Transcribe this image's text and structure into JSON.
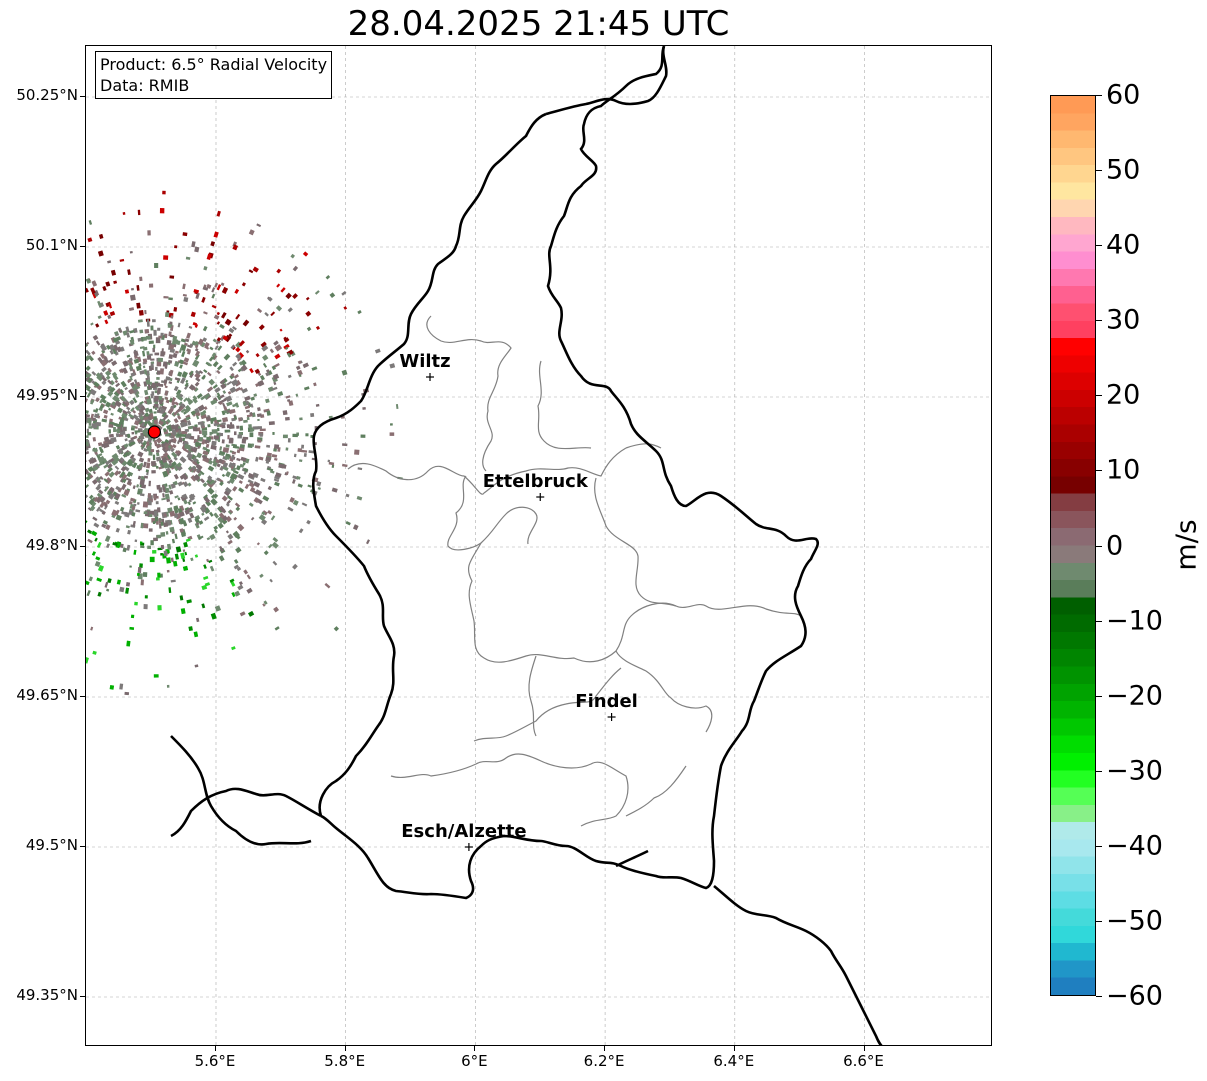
{
  "title": "28.04.2025 21:45 UTC",
  "info_box": {
    "product": "Product: 6.5° Radial Velocity",
    "data_source": "Data: RMIB"
  },
  "axes": {
    "lat_labels": [
      "50.25°N",
      "50.1°N",
      "49.95°N",
      "49.8°N",
      "49.65°N",
      "49.5°N",
      "49.35°N"
    ],
    "lat_values": [
      50.25,
      50.1,
      49.95,
      49.8,
      49.65,
      49.5,
      49.35
    ],
    "lon_labels": [
      "5.6°E",
      "5.8°E",
      "6°E",
      "6.2°E",
      "6.4°E",
      "6.6°E"
    ],
    "lon_values": [
      5.6,
      5.8,
      6.0,
      6.2,
      6.4,
      6.6
    ]
  },
  "cities": [
    {
      "name": "Wiltz",
      "lon": 5.93,
      "lat": 49.97
    },
    {
      "name": "Ettelbruck",
      "lon": 6.1,
      "lat": 49.85
    },
    {
      "name": "Findel",
      "lon": 6.21,
      "lat": 49.63
    },
    {
      "name": "Esch/Alzette",
      "lon": 5.99,
      "lat": 49.5
    }
  ],
  "radar_site": {
    "lon": 5.505,
    "lat": 49.915,
    "color": "#ff0000"
  },
  "colorbar": {
    "unit": "m/s",
    "min": -60,
    "max": 60,
    "tick_labels": [
      "60",
      "50",
      "40",
      "30",
      "20",
      "10",
      "0",
      "−10",
      "−20",
      "−30",
      "−40",
      "−50",
      "−60"
    ],
    "tick_values": [
      60,
      50,
      40,
      30,
      20,
      10,
      0,
      -10,
      -20,
      -30,
      -40,
      -50,
      -60
    ],
    "colors_top_to_bottom": [
      "#ff9a55",
      "#ffa560",
      "#ffb870",
      "#ffc680",
      "#ffd690",
      "#ffe6a0",
      "#ffd6b0",
      "#ffb8c0",
      "#ffa6d0",
      "#ff8ed0",
      "#ff78b0",
      "#ff6090",
      "#ff5070",
      "#ff4060",
      "#ff0000",
      "#ee0000",
      "#dd0000",
      "#cc0000",
      "#bb0000",
      "#aa0000",
      "#990000",
      "#880000",
      "#770000",
      "#843d42",
      "#8a555c",
      "#8b6a72",
      "#8a7a7a",
      "#6f8a6f",
      "#5a7d5a",
      "#005f00",
      "#006b00",
      "#007800",
      "#008500",
      "#009300",
      "#00a300",
      "#00b400",
      "#00c800",
      "#00dd00",
      "#00f000",
      "#22ff22",
      "#55ff55",
      "#88f088",
      "#b0eaea",
      "#a8e8ee",
      "#90e4ea",
      "#78e0e8",
      "#5ddde4",
      "#44dada",
      "#30d8da",
      "#20b8d0",
      "#2096c8",
      "#1f7fc0"
    ]
  }
}
